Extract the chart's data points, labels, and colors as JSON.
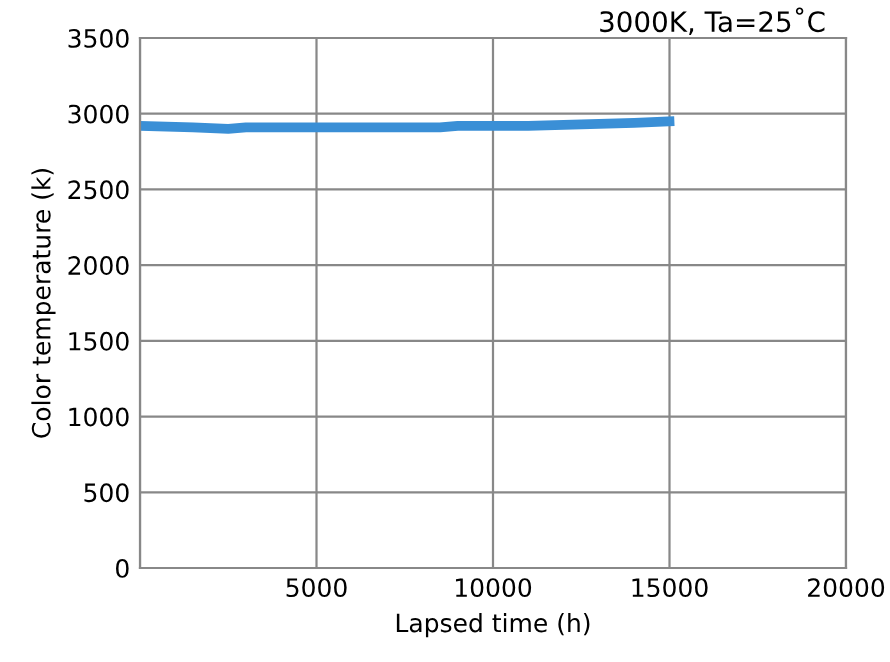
{
  "chart_data": {
    "type": "line",
    "title": "3000K, Ta=25˚C",
    "xlabel": "Lapsed time (h)",
    "ylabel": "Color temperature (k)",
    "x": [
      0,
      1500,
      2500,
      3000,
      5000,
      8500,
      9000,
      11000,
      12500,
      14000,
      15000
    ],
    "series": [
      {
        "color": "#3a8fd6",
        "values": [
          2920,
          2910,
          2900,
          2910,
          2910,
          2910,
          2920,
          2920,
          2930,
          2940,
          2950
        ]
      }
    ],
    "xlim": [
      0,
      20000
    ],
    "ylim": [
      0,
      3500
    ],
    "xticks": [
      {
        "value": 0,
        "label": null
      },
      5000,
      10000,
      15000,
      20000
    ],
    "yticks": [
      0,
      500,
      1000,
      1500,
      2000,
      2500,
      3000,
      3500
    ],
    "grid": true,
    "marker": "none",
    "line_style": "solid"
  }
}
